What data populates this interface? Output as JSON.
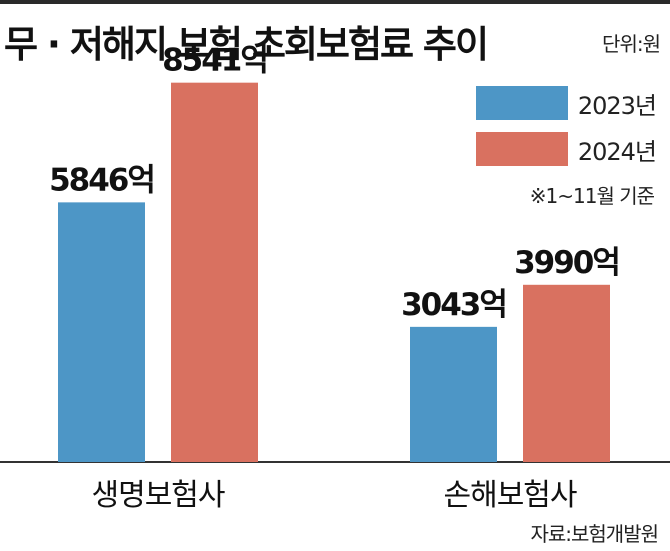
{
  "title": "무 · 저해지 보험 초회보험료 추이",
  "unit_label": "단위:원",
  "note": "※1~11월 기준",
  "source": "자료:보험개발원",
  "chart_data": {
    "type": "bar",
    "categories": [
      "생명보험사",
      "손해보험사"
    ],
    "series": [
      {
        "name": "2023년",
        "values": [
          5846,
          3043
        ],
        "labels": [
          "5846억",
          "3043억"
        ],
        "color": "#4d96c6"
      },
      {
        "name": "2024년",
        "values": [
          8541,
          3990
        ],
        "labels": [
          "8541억",
          "3990억"
        ],
        "color": "#d97160"
      }
    ],
    "ylim": [
      0,
      9727
    ],
    "legend": "top-right",
    "grid": false
  }
}
